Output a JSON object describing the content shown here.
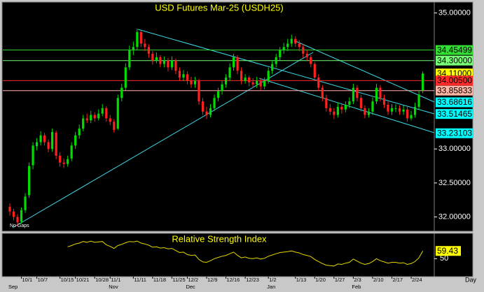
{
  "chart_data": {
    "type": "candlestick",
    "title": "USD Futures Mar-25  (USDH25)",
    "note": "No Gaps",
    "period": "Day",
    "up_color": "#00dd00",
    "down_color": "#ff2020",
    "ylim": [
      31.79,
      35.16
    ],
    "yticks": [
      {
        "value": 35,
        "label": "35.00000"
      },
      {
        "value": 33,
        "label": "33.00000"
      },
      {
        "value": 32.5,
        "label": "32.50000"
      },
      {
        "value": 32,
        "label": "32.00000"
      }
    ],
    "categories": [
      null,
      null,
      null,
      "10/1",
      null,
      null,
      null,
      "10/7",
      null,
      null,
      null,
      null,
      null,
      "10/15",
      null,
      null,
      null,
      "10/21",
      null,
      null,
      null,
      null,
      "10/28",
      null,
      null,
      null,
      "11/1",
      null,
      null,
      null,
      null,
      null,
      "11/11",
      null,
      null,
      null,
      null,
      "11/18",
      null,
      null,
      null,
      null,
      "11/25",
      null,
      null,
      null,
      "12/2",
      null,
      null,
      null,
      null,
      "12/9",
      null,
      null,
      null,
      null,
      "12/16",
      null,
      null,
      null,
      null,
      "12/23",
      null,
      null,
      null,
      null,
      null,
      "1/2",
      null,
      null,
      null,
      null,
      null,
      null,
      "1/13",
      null,
      null,
      null,
      null,
      "1/20",
      null,
      null,
      null,
      null,
      "1/27",
      null,
      null,
      null,
      null,
      "2/3",
      null,
      null,
      null,
      null,
      "2/10",
      null,
      null,
      null,
      null,
      "2/17",
      null,
      null,
      null,
      null,
      "2/24",
      null,
      null,
      null
    ],
    "months": [
      "Sep",
      null,
      null,
      null,
      null,
      null,
      null,
      null,
      null,
      null,
      null,
      null,
      null,
      null,
      null,
      null,
      null,
      null,
      null,
      null,
      null,
      null,
      null,
      null,
      null,
      null,
      "Nov",
      null,
      null,
      null,
      null,
      null,
      null,
      null,
      null,
      null,
      null,
      null,
      null,
      null,
      null,
      null,
      null,
      null,
      null,
      null,
      "Dec",
      null,
      null,
      null,
      null,
      null,
      null,
      null,
      null,
      null,
      null,
      null,
      null,
      null,
      null,
      null,
      null,
      null,
      null,
      null,
      null,
      "Jan",
      null,
      null,
      null,
      null,
      null,
      null,
      null,
      null,
      null,
      null,
      null,
      null,
      null,
      null,
      null,
      null,
      null,
      null,
      null,
      null,
      null,
      "Feb",
      null,
      null,
      null,
      null,
      null,
      null,
      null,
      null,
      null,
      null,
      null,
      null,
      null,
      null,
      null,
      null,
      null,
      null
    ],
    "ohlc": [
      [
        32.15,
        32.2,
        32.02,
        32.08
      ],
      [
        32.08,
        32.12,
        31.95,
        32.0
      ],
      [
        32.0,
        32.04,
        31.86,
        31.92
      ],
      [
        31.93,
        32.14,
        31.9,
        32.1
      ],
      [
        32.1,
        32.35,
        32.06,
        32.3
      ],
      [
        32.32,
        32.8,
        32.28,
        32.75
      ],
      [
        32.76,
        33.1,
        32.7,
        33.05
      ],
      [
        33.04,
        33.16,
        32.98,
        33.1
      ],
      [
        33.1,
        33.26,
        33.05,
        33.2
      ],
      [
        33.2,
        33.24,
        33.05,
        33.1
      ],
      [
        33.1,
        33.14,
        32.95,
        33.0
      ],
      [
        33.0,
        33.3,
        32.96,
        33.25
      ],
      [
        33.24,
        33.27,
        32.85,
        32.9
      ],
      [
        32.9,
        32.95,
        32.74,
        32.8
      ],
      [
        32.8,
        32.86,
        32.72,
        32.78
      ],
      [
        32.78,
        32.9,
        32.74,
        32.85
      ],
      [
        32.86,
        33.1,
        32.82,
        33.05
      ],
      [
        33.05,
        33.25,
        33.0,
        33.2
      ],
      [
        33.2,
        33.36,
        33.15,
        33.3
      ],
      [
        33.3,
        33.5,
        33.26,
        33.45
      ],
      [
        33.45,
        33.52,
        33.38,
        33.42
      ],
      [
        33.42,
        33.56,
        33.38,
        33.5
      ],
      [
        33.5,
        33.54,
        33.4,
        33.45
      ],
      [
        33.45,
        33.58,
        33.42,
        33.52
      ],
      [
        33.52,
        33.66,
        33.48,
        33.6
      ],
      [
        33.6,
        33.63,
        33.4,
        33.45
      ],
      [
        33.45,
        33.5,
        33.35,
        33.4
      ],
      [
        33.4,
        33.44,
        33.24,
        33.28
      ],
      [
        33.3,
        33.8,
        33.28,
        33.75
      ],
      [
        33.75,
        33.96,
        33.7,
        33.9
      ],
      [
        33.9,
        34.26,
        33.86,
        34.2
      ],
      [
        34.2,
        34.52,
        34.16,
        34.45
      ],
      [
        34.45,
        34.58,
        34.38,
        34.5
      ],
      [
        34.5,
        34.77,
        34.46,
        34.72
      ],
      [
        34.72,
        34.74,
        34.5,
        34.55
      ],
      [
        34.55,
        34.62,
        34.44,
        34.5
      ],
      [
        34.5,
        34.54,
        34.34,
        34.4
      ],
      [
        34.4,
        34.44,
        34.24,
        34.3
      ],
      [
        34.3,
        34.42,
        34.26,
        34.35
      ],
      [
        34.35,
        34.38,
        34.2,
        34.25
      ],
      [
        34.25,
        34.36,
        34.2,
        34.3
      ],
      [
        34.3,
        34.34,
        34.14,
        34.2
      ],
      [
        34.2,
        34.36,
        34.16,
        34.3
      ],
      [
        34.3,
        34.33,
        34.1,
        34.15
      ],
      [
        34.15,
        34.2,
        34.0,
        34.05
      ],
      [
        34.05,
        34.16,
        34.0,
        34.1
      ],
      [
        34.1,
        34.14,
        33.95,
        34.0
      ],
      [
        34.0,
        34.06,
        33.9,
        33.95
      ],
      [
        33.95,
        34.06,
        33.9,
        34.0
      ],
      [
        34.0,
        34.03,
        33.65,
        33.7
      ],
      [
        33.7,
        33.75,
        33.5,
        33.55
      ],
      [
        33.55,
        33.62,
        33.44,
        33.5
      ],
      [
        33.5,
        33.66,
        33.46,
        33.6
      ],
      [
        33.6,
        33.8,
        33.56,
        33.75
      ],
      [
        33.75,
        33.9,
        33.7,
        33.85
      ],
      [
        33.85,
        34.0,
        33.8,
        33.95
      ],
      [
        33.95,
        34.1,
        33.9,
        34.05
      ],
      [
        34.05,
        34.26,
        34.0,
        34.2
      ],
      [
        34.2,
        34.4,
        34.15,
        34.35
      ],
      [
        34.35,
        34.38,
        34.1,
        34.15
      ],
      [
        34.15,
        34.2,
        33.95,
        34.0
      ],
      [
        34.0,
        34.1,
        33.96,
        34.05
      ],
      [
        34.05,
        34.08,
        33.92,
        33.98
      ],
      [
        33.98,
        34.04,
        33.9,
        33.95
      ],
      [
        33.95,
        34.06,
        33.9,
        34.0
      ],
      [
        34.0,
        34.04,
        33.86,
        33.92
      ],
      [
        33.92,
        34.05,
        33.88,
        34.0
      ],
      [
        34.0,
        34.2,
        33.96,
        34.15
      ],
      [
        34.15,
        34.3,
        34.1,
        34.25
      ],
      [
        34.25,
        34.4,
        34.2,
        34.35
      ],
      [
        34.35,
        34.5,
        34.3,
        34.45
      ],
      [
        34.45,
        34.56,
        34.4,
        34.5
      ],
      [
        34.5,
        34.62,
        34.44,
        34.55
      ],
      [
        34.55,
        34.68,
        34.5,
        34.62
      ],
      [
        34.62,
        34.66,
        34.5,
        34.55
      ],
      [
        34.55,
        34.6,
        34.44,
        34.5
      ],
      [
        34.5,
        34.54,
        34.34,
        34.4
      ],
      [
        34.4,
        34.45,
        34.3,
        34.35
      ],
      [
        34.35,
        34.38,
        34.2,
        34.25
      ],
      [
        34.25,
        34.28,
        34.0,
        34.05
      ],
      [
        34.05,
        34.1,
        33.85,
        33.9
      ],
      [
        33.9,
        33.94,
        33.7,
        33.75
      ],
      [
        33.75,
        33.8,
        33.55,
        33.6
      ],
      [
        33.6,
        33.66,
        33.5,
        33.55
      ],
      [
        33.55,
        33.6,
        33.44,
        33.5
      ],
      [
        33.5,
        33.68,
        33.46,
        33.62
      ],
      [
        33.62,
        33.66,
        33.52,
        33.58
      ],
      [
        33.58,
        33.7,
        33.54,
        33.65
      ],
      [
        33.65,
        33.76,
        33.6,
        33.7
      ],
      [
        33.7,
        33.96,
        33.66,
        33.9
      ],
      [
        33.9,
        33.94,
        33.7,
        33.75
      ],
      [
        33.75,
        33.8,
        33.55,
        33.6
      ],
      [
        33.6,
        33.64,
        33.45,
        33.5
      ],
      [
        33.5,
        33.6,
        33.46,
        33.55
      ],
      [
        33.55,
        33.76,
        33.5,
        33.7
      ],
      [
        33.7,
        33.96,
        33.66,
        33.9
      ],
      [
        33.9,
        33.94,
        33.7,
        33.75
      ],
      [
        33.75,
        33.8,
        33.6,
        33.65
      ],
      [
        33.65,
        33.7,
        33.5,
        33.55
      ],
      [
        33.55,
        33.66,
        33.5,
        33.6
      ],
      [
        33.6,
        33.66,
        33.54,
        33.6
      ],
      [
        33.6,
        33.64,
        33.5,
        33.55
      ],
      [
        33.55,
        33.64,
        33.5,
        33.58
      ],
      [
        33.58,
        33.62,
        33.4,
        33.45
      ],
      [
        33.45,
        33.56,
        33.42,
        33.5
      ],
      [
        33.5,
        33.68,
        33.46,
        33.62
      ],
      [
        33.62,
        33.86,
        33.58,
        33.8
      ],
      [
        33.86,
        34.14,
        33.82,
        34.11
      ]
    ],
    "levels": [
      {
        "value": 34.45499,
        "label": "34.45499",
        "color": "#33dd33",
        "line": true
      },
      {
        "value": 34.3,
        "label": "34.30000",
        "color": "#77ff77",
        "line": true
      },
      {
        "value": 34.11,
        "label": "34.11000",
        "color": "#ffff00",
        "line": false
      },
      {
        "value": 34.005,
        "label": "34.00500",
        "color": "#ff2a2a",
        "line": true
      },
      {
        "value": 33.85833,
        "label": "33.85833",
        "color": "#ffb4a4",
        "line": true
      },
      {
        "value": 33.68616,
        "label": "33.68616",
        "color": "#00ffff",
        "line": false
      },
      {
        "value": 33.51465,
        "label": "33.51465",
        "color": "#00ffff",
        "line": false
      },
      {
        "value": 33.23103,
        "label": "33.23103",
        "color": "#00ffff",
        "line": false
      }
    ],
    "rsi": {
      "title": "Relative Strength Index",
      "color": "#e8d800",
      "label_color": "#ffff00",
      "ylim": [
        28,
        81
      ],
      "yticks": [
        50
      ],
      "values": [
        null,
        null,
        null,
        null,
        null,
        null,
        null,
        null,
        null,
        null,
        null,
        null,
        null,
        null,
        null,
        64.5,
        66,
        68,
        69,
        71,
        70,
        71.5,
        70,
        70.5,
        71,
        67,
        65,
        62.5,
        66,
        67.5,
        69.5,
        71,
        70.5,
        71.5,
        69,
        68,
        66.5,
        64,
        64.5,
        63,
        63.5,
        62,
        62.5,
        60,
        57.5,
        58,
        55,
        54,
        54.5,
        49,
        46,
        45.5,
        47.5,
        50,
        51.5,
        53,
        54,
        56,
        58,
        54,
        51,
        52,
        50.5,
        50,
        51,
        49.5,
        50.5,
        53,
        54.5,
        56,
        57.5,
        58,
        58.5,
        59.5,
        58,
        57,
        55,
        54,
        52.5,
        49,
        46.5,
        44,
        42,
        41.5,
        41,
        43.5,
        43,
        44.5,
        45.5,
        49.5,
        47,
        44.5,
        43,
        44,
        46.5,
        50,
        47.5,
        46,
        44.5,
        45.5,
        45.5,
        44.5,
        45,
        43,
        44,
        46.5,
        51,
        59.43
      ]
    }
  }
}
